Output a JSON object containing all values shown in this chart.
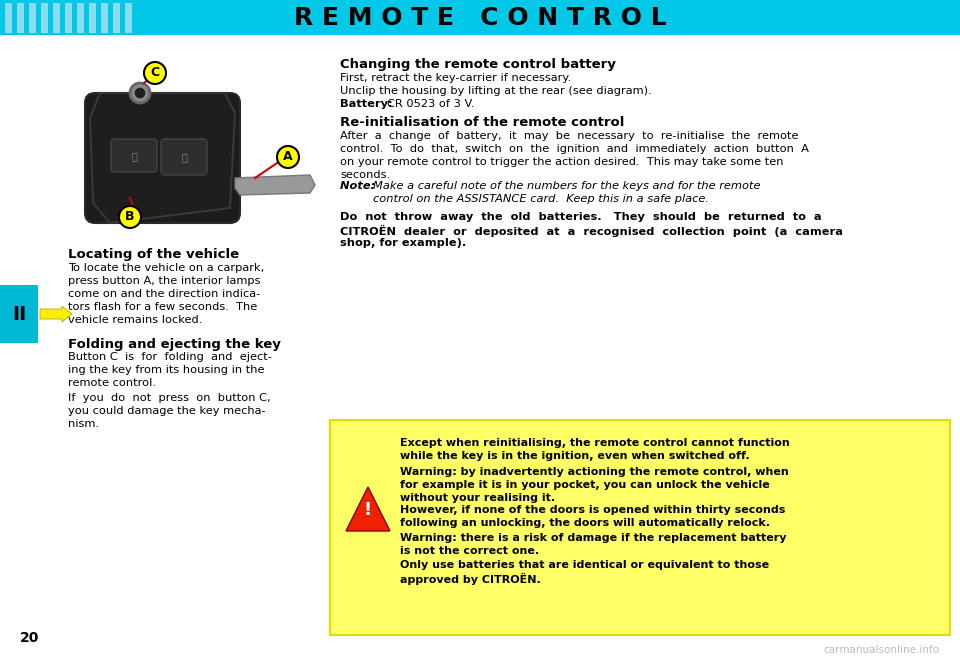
{
  "title": "R E M O T E   C O N T R O L",
  "title_bg": "#00c8e6",
  "title_color": "#000000",
  "title_fontsize": 18,
  "page_bg": "#ffffff",
  "chapter_label": "II",
  "chapter_bg": "#00b8d4",
  "page_number": "20",
  "section1_title": "Locating of the vehicle",
  "section2_title": "Folding and ejecting the key",
  "right_title1": "Changing the remote control battery",
  "right_body1a": "First, retract the key-carrier if necessary.",
  "right_body1b": "Unclip the housing by lifting at the rear (see diagram).",
  "right_body1c_bold": "Battery: ",
  "right_body1c_normal": "CR 0523 of 3 V.",
  "right_title2": "Re-initialisation of the remote control",
  "warning_box_bg": "#ffff66",
  "warning_box_border": "#dddd00",
  "label_a_color": "#ffff00",
  "label_b_color": "#ffff00",
  "label_c_color": "#ffff00",
  "label_text_color": "#000000",
  "arrow_color": "#ffee00",
  "line_color": "#cc0000",
  "watermark": "carmanualsonline.info",
  "watermark_color": "#aaaaaa"
}
